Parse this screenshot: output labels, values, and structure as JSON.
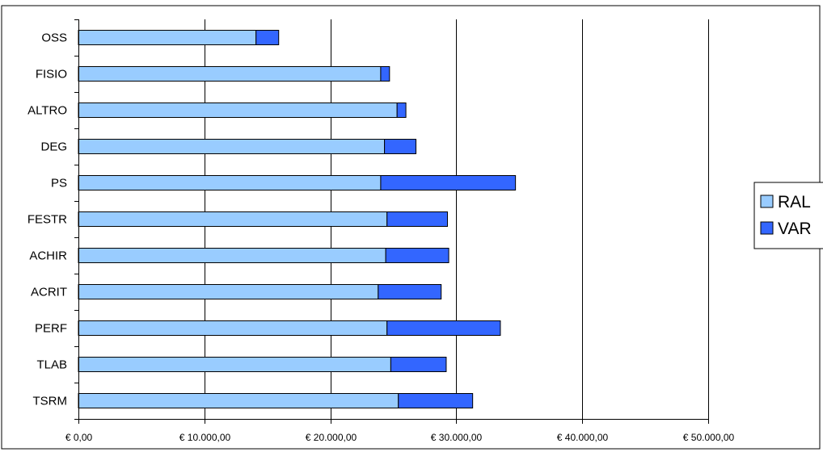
{
  "chart_data": {
    "type": "bar",
    "orientation": "horizontal",
    "stacked": true,
    "categories": [
      "OSS",
      "FISIO",
      "ALTRO",
      "DEG",
      "PS",
      "FESTR",
      "ACHIR",
      "ACRIT",
      "PERF",
      "TLAB",
      "TSRM"
    ],
    "series": [
      {
        "name": "RAL",
        "color": "#99ccff",
        "values": [
          14100,
          24000,
          25300,
          24300,
          24000,
          24500,
          24400,
          23800,
          24500,
          24800,
          25400
        ]
      },
      {
        "name": "VAR",
        "color": "#3366ff",
        "values": [
          1800,
          700,
          700,
          2500,
          10700,
          4800,
          5000,
          5000,
          9000,
          4400,
          5900
        ]
      }
    ],
    "title": "",
    "xlabel": "",
    "ylabel": "",
    "xlim": [
      0,
      50000
    ],
    "x_ticks": [
      "€ 0,00",
      "€ 10.000,00",
      "€ 20.000,00",
      "€ 30.000,00",
      "€ 40.000,00",
      "€ 50.000,00"
    ],
    "grid": "vertical",
    "legend": "right"
  }
}
